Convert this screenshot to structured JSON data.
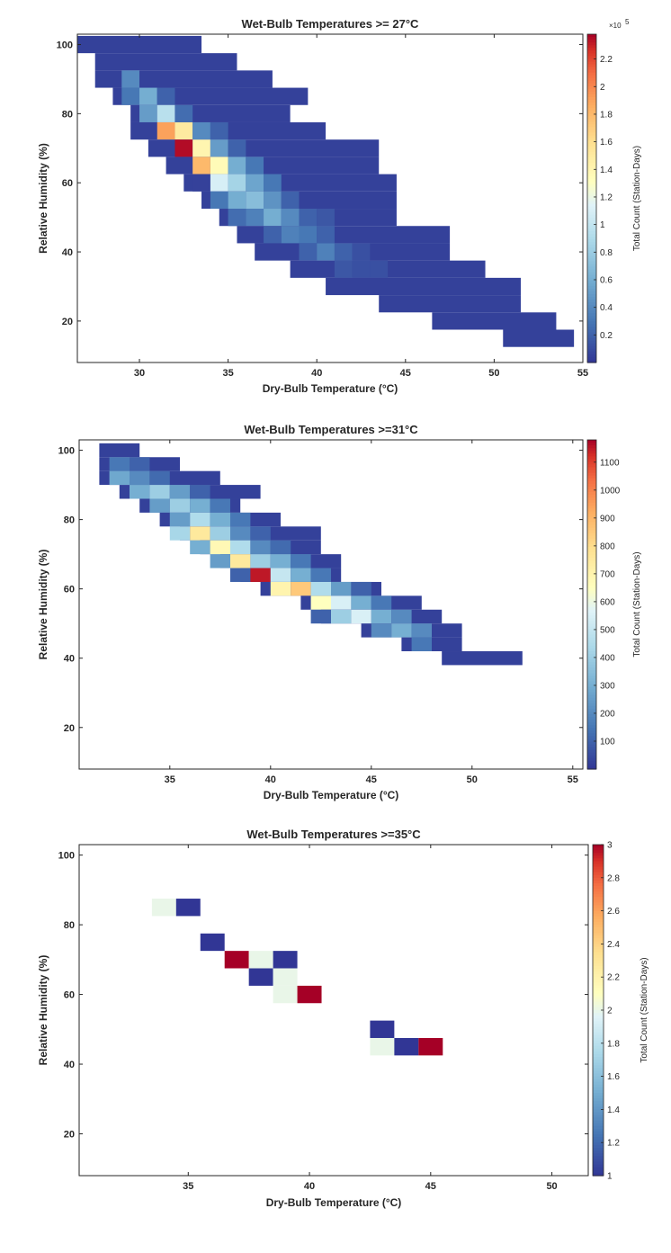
{
  "charts": [
    {
      "type": "heatmap",
      "title": "Wet-Bulb Temperatures >= 27°C",
      "xlabel": "Dry-Bulb Temperature (°C)",
      "ylabel": "Relative Humidity (%)",
      "colorbar_label": "Total Count (Station-Days)",
      "colorbar_exponent": "×10",
      "colorbar_exponent_power": "5",
      "xlim": [
        26.5,
        55
      ],
      "ylim": [
        8,
        103
      ],
      "xticks": [
        "30",
        "35",
        "40",
        "45",
        "50",
        "55"
      ],
      "yticks": [
        "20",
        "40",
        "60",
        "80",
        "100"
      ],
      "cbar_range": [
        0,
        2.38
      ],
      "cbar_ticks": [
        "0.2",
        "0.4",
        "0.6",
        "0.8",
        "1",
        "1.2",
        "1.4",
        "1.6",
        "1.8",
        "2",
        "2.2"
      ],
      "bin_width_x": 1,
      "bin_height_y": 5,
      "rows": [
        {
          "y": 100,
          "x0": 26.5,
          "x1": 33.5,
          "hot": []
        },
        {
          "y": 95,
          "x0": 27.5,
          "x1": 35.5,
          "hot": []
        },
        {
          "y": 90,
          "x0": 27.5,
          "x1": 37.5,
          "hot": [
            [
              29.5,
              0.4
            ]
          ]
        },
        {
          "y": 85,
          "x0": 28.5,
          "x1": 39.5,
          "hot": [
            [
              29.5,
              0.3
            ],
            [
              30.5,
              0.6
            ],
            [
              31.5,
              0.2
            ]
          ]
        },
        {
          "y": 80,
          "x0": 29.5,
          "x1": 38.5,
          "hot": [
            [
              30.5,
              0.5
            ],
            [
              31.5,
              0.95
            ],
            [
              32.5,
              0.25
            ]
          ]
        },
        {
          "y": 75,
          "x0": 29.5,
          "x1": 40.5,
          "hot": [
            [
              31.5,
              1.9
            ],
            [
              32.5,
              1.5
            ],
            [
              33.5,
              0.4
            ],
            [
              34.5,
              0.2
            ]
          ]
        },
        {
          "y": 70,
          "x0": 30.5,
          "x1": 43.5,
          "hot": [
            [
              32.5,
              2.35
            ],
            [
              33.5,
              1.4
            ],
            [
              34.5,
              0.5
            ],
            [
              35.5,
              0.2
            ]
          ]
        },
        {
          "y": 65,
          "x0": 31.5,
          "x1": 43.5,
          "hot": [
            [
              33.5,
              1.8
            ],
            [
              34.5,
              1.35
            ],
            [
              35.5,
              0.6
            ],
            [
              36.5,
              0.3
            ]
          ]
        },
        {
          "y": 60,
          "x0": 32.5,
          "x1": 44.5,
          "hot": [
            [
              33.5,
              0.05
            ],
            [
              34.5,
              1.1
            ],
            [
              35.5,
              0.85
            ],
            [
              36.5,
              0.55
            ],
            [
              37.5,
              0.3
            ]
          ]
        },
        {
          "y": 55,
          "x0": 33.5,
          "x1": 44.5,
          "hot": [
            [
              34.5,
              0.3
            ],
            [
              35.5,
              0.6
            ],
            [
              36.5,
              0.7
            ],
            [
              37.5,
              0.45
            ],
            [
              38.5,
              0.2
            ]
          ]
        },
        {
          "y": 50,
          "x0": 34.5,
          "x1": 44.5,
          "hot": [
            [
              35.5,
              0.25
            ],
            [
              36.5,
              0.35
            ],
            [
              37.5,
              0.6
            ],
            [
              38.5,
              0.4
            ],
            [
              39.5,
              0.2
            ],
            [
              40.5,
              0.15
            ]
          ]
        },
        {
          "y": 45,
          "x0": 35.5,
          "x1": 47.5,
          "hot": [
            [
              37.5,
              0.2
            ],
            [
              38.5,
              0.35
            ],
            [
              39.5,
              0.3
            ],
            [
              40.5,
              0.2
            ]
          ]
        },
        {
          "y": 40,
          "x0": 36.5,
          "x1": 47.5,
          "hot": [
            [
              39.5,
              0.2
            ],
            [
              40.5,
              0.35
            ],
            [
              41.5,
              0.2
            ],
            [
              42.5,
              0.12
            ]
          ]
        },
        {
          "y": 35,
          "x0": 38.5,
          "x1": 49.5,
          "hot": [
            [
              41.5,
              0.15
            ],
            [
              42.5,
              0.12
            ],
            [
              43.5,
              0.12
            ]
          ]
        },
        {
          "y": 30,
          "x0": 40.5,
          "x1": 51.5,
          "hot": []
        },
        {
          "y": 25,
          "x0": 43.5,
          "x1": 51.5,
          "hot": []
        },
        {
          "y": 20,
          "x0": 46.5,
          "x1": 53.5,
          "hot": []
        },
        {
          "y": 15,
          "x0": 50.5,
          "x1": 54.5,
          "hot": []
        }
      ]
    },
    {
      "type": "heatmap",
      "title": "Wet-Bulb Temperatures >=31°C",
      "xlabel": "Dry-Bulb Temperature (°C)",
      "ylabel": "Relative Humidity (%)",
      "colorbar_label": "Total Count (Station-Days)",
      "colorbar_exponent": "",
      "colorbar_exponent_power": "",
      "xlim": [
        30.5,
        55.5
      ],
      "ylim": [
        8,
        103
      ],
      "xticks": [
        "35",
        "40",
        "45",
        "50",
        "55"
      ],
      "yticks": [
        "20",
        "40",
        "60",
        "80",
        "100"
      ],
      "cbar_range": [
        0,
        1180
      ],
      "cbar_ticks": [
        "100",
        "200",
        "300",
        "400",
        "500",
        "600",
        "700",
        "800",
        "900",
        "1000",
        "1100"
      ],
      "bin_width_x": 1,
      "bin_height_y": 4,
      "rows": [
        {
          "y": 100,
          "x0": 31.5,
          "x1": 33.5,
          "hot": []
        },
        {
          "y": 96,
          "x0": 31.5,
          "x1": 35.5,
          "hot": [
            [
              32.5,
              150
            ],
            [
              33.5,
              100
            ]
          ]
        },
        {
          "y": 92,
          "x0": 31.5,
          "x1": 37.5,
          "hot": [
            [
              32.5,
              280
            ],
            [
              33.5,
              200
            ],
            [
              34.5,
              120
            ]
          ]
        },
        {
          "y": 88,
          "x0": 32.5,
          "x1": 39.5,
          "hot": [
            [
              33.5,
              300
            ],
            [
              34.5,
              400
            ],
            [
              35.5,
              250
            ],
            [
              36.5,
              100
            ]
          ]
        },
        {
          "y": 84,
          "x0": 33.5,
          "x1": 38.5,
          "hot": [
            [
              34.5,
              250
            ],
            [
              35.5,
              400
            ],
            [
              36.5,
              300
            ],
            [
              37.5,
              150
            ]
          ]
        },
        {
          "y": 80,
          "x0": 34.5,
          "x1": 40.5,
          "hot": [
            [
              35.5,
              250
            ],
            [
              36.5,
              450
            ],
            [
              37.5,
              300
            ],
            [
              38.5,
              150
            ]
          ]
        },
        {
          "y": 76,
          "x0": 35.5,
          "x1": 42.5,
          "hot": [
            [
              35.5,
              430
            ],
            [
              36.5,
              750
            ],
            [
              37.5,
              400
            ],
            [
              38.5,
              200
            ],
            [
              39.5,
              100
            ]
          ]
        },
        {
          "y": 72,
          "x0": 36.5,
          "x1": 42.5,
          "hot": [
            [
              36.5,
              300
            ],
            [
              37.5,
              680
            ],
            [
              38.5,
              450
            ],
            [
              39.5,
              200
            ],
            [
              40.5,
              120
            ]
          ]
        },
        {
          "y": 68,
          "x0": 37.5,
          "x1": 43.5,
          "hot": [
            [
              37.5,
              250
            ],
            [
              38.5,
              750
            ],
            [
              39.5,
              400
            ],
            [
              40.5,
              300
            ],
            [
              41.5,
              150
            ]
          ]
        },
        {
          "y": 64,
          "x0": 38.5,
          "x1": 43.5,
          "hot": [
            [
              38.5,
              100
            ],
            [
              39.5,
              1150
            ],
            [
              40.5,
              500
            ],
            [
              41.5,
              300
            ],
            [
              42.5,
              150
            ]
          ]
        },
        {
          "y": 60,
          "x0": 39.5,
          "x1": 45.5,
          "hot": [
            [
              40.5,
              700
            ],
            [
              41.5,
              850
            ],
            [
              42.5,
              450
            ],
            [
              43.5,
              250
            ],
            [
              44.5,
              100
            ]
          ]
        },
        {
          "y": 56,
          "x0": 41.5,
          "x1": 47.5,
          "hot": [
            [
              42.5,
              650
            ],
            [
              43.5,
              550
            ],
            [
              44.5,
              300
            ],
            [
              45.5,
              150
            ]
          ]
        },
        {
          "y": 52,
          "x0": 42.5,
          "x1": 48.5,
          "hot": [
            [
              42.5,
              100
            ],
            [
              43.5,
              400
            ],
            [
              44.5,
              550
            ],
            [
              45.5,
              300
            ],
            [
              46.5,
              200
            ]
          ]
        },
        {
          "y": 48,
          "x0": 44.5,
          "x1": 49.5,
          "hot": [
            [
              45.5,
              200
            ],
            [
              46.5,
              300
            ],
            [
              47.5,
              200
            ]
          ]
        },
        {
          "y": 44,
          "x0": 46.5,
          "x1": 49.5,
          "hot": [
            [
              47.5,
              150
            ]
          ]
        },
        {
          "y": 40,
          "x0": 48.5,
          "x1": 52.5,
          "hot": []
        }
      ]
    },
    {
      "type": "heatmap",
      "title": "Wet-Bulb Temperatures >=35°C",
      "xlabel": "Dry-Bulb Temperature (°C)",
      "ylabel": "Relative Humidity (%)",
      "colorbar_label": "Total Count (Station-Days)",
      "colorbar_exponent": "",
      "colorbar_exponent_power": "",
      "xlim": [
        30.5,
        51.5
      ],
      "ylim": [
        8,
        103
      ],
      "xticks": [
        "35",
        "40",
        "45",
        "50"
      ],
      "yticks": [
        "20",
        "40",
        "60",
        "80",
        "100"
      ],
      "cbar_range": [
        1,
        3
      ],
      "cbar_ticks": [
        "1",
        "1.2",
        "1.4",
        "1.6",
        "1.8",
        "2",
        "2.2",
        "2.4",
        "2.6",
        "2.8",
        "3"
      ],
      "bin_width_x": 1,
      "bin_height_y": 5,
      "cells": [
        {
          "x": 34,
          "y": 85,
          "v": 2
        },
        {
          "x": 35,
          "y": 85,
          "v": 1
        },
        {
          "x": 36,
          "y": 75,
          "v": 1
        },
        {
          "x": 37,
          "y": 70,
          "v": 3
        },
        {
          "x": 38,
          "y": 70,
          "v": 2
        },
        {
          "x": 39,
          "y": 70,
          "v": 1
        },
        {
          "x": 38,
          "y": 65,
          "v": 1
        },
        {
          "x": 39,
          "y": 65,
          "v": 2
        },
        {
          "x": 39,
          "y": 60,
          "v": 2
        },
        {
          "x": 40,
          "y": 60,
          "v": 3
        },
        {
          "x": 43,
          "y": 50,
          "v": 1
        },
        {
          "x": 43,
          "y": 45,
          "v": 2
        },
        {
          "x": 44,
          "y": 45,
          "v": 1
        },
        {
          "x": 45,
          "y": 45,
          "v": 3
        }
      ]
    }
  ],
  "colors": {
    "low": "#313695",
    "mid": "#ffffbf",
    "high": "#a50026",
    "axis": "#262626"
  }
}
